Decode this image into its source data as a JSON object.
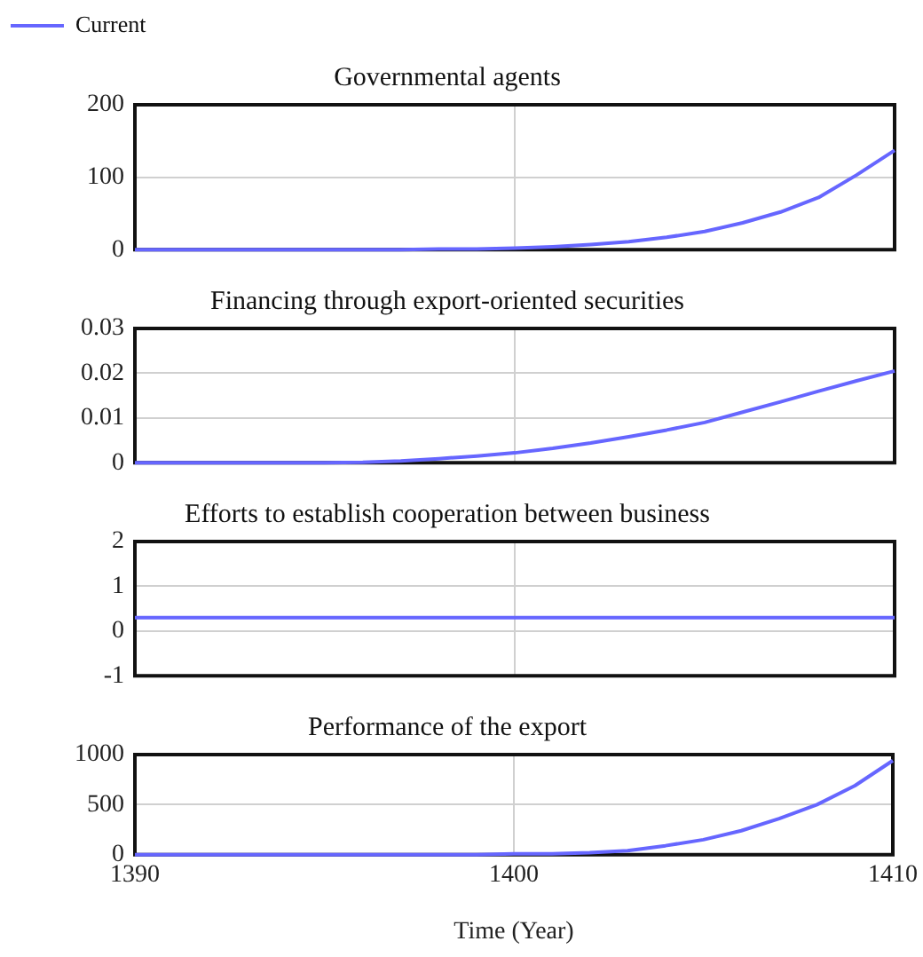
{
  "chart_data": [
    {
      "type": "line",
      "title": "Governmental agents",
      "legend": "top left",
      "marker": "none",
      "grid": true,
      "tick_labels": "y",
      "x": [
        1390,
        1391,
        1392,
        1393,
        1394,
        1395,
        1396,
        1397,
        1398,
        1399,
        1400,
        1401,
        1402,
        1403,
        1404,
        1405,
        1406,
        1407,
        1408,
        1409,
        1410
      ],
      "xlim": [
        1390,
        1410
      ],
      "xticks": [
        1390,
        1400,
        1410
      ],
      "ylim": [
        0,
        200
      ],
      "yticks": [
        0,
        100,
        200
      ],
      "series": [
        {
          "name": "Current",
          "color": "#6666ff",
          "values": [
            0,
            0,
            0,
            0,
            0,
            0,
            0,
            0,
            1,
            1,
            2,
            4,
            7,
            11,
            17,
            25,
            37,
            52,
            72,
            103,
            137
          ]
        }
      ]
    },
    {
      "type": "line",
      "title": "Financing through export-oriented securities",
      "marker": "none",
      "grid": true,
      "tick_labels": "y",
      "x": [
        1390,
        1391,
        1392,
        1393,
        1394,
        1395,
        1396,
        1397,
        1398,
        1399,
        1400,
        1401,
        1402,
        1403,
        1404,
        1405,
        1406,
        1407,
        1408,
        1409,
        1410
      ],
      "xlim": [
        1390,
        1410
      ],
      "xticks": [
        1390,
        1400,
        1410
      ],
      "ylim": [
        0,
        0.03
      ],
      "yticks": [
        0,
        0.01,
        0.02,
        0.03
      ],
      "series": [
        {
          "color": "#6666ff",
          "values": [
            0,
            0,
            0,
            0,
            0,
            0,
            0.0001,
            0.0004,
            0.0009,
            0.0015,
            0.0022,
            0.0032,
            0.0044,
            0.0058,
            0.0073,
            0.009,
            0.0113,
            0.0136,
            0.016,
            0.0183,
            0.0205
          ]
        }
      ]
    },
    {
      "type": "line",
      "title": "Efforts to establish cooperation between business",
      "marker": "none",
      "grid": true,
      "tick_labels": "y",
      "x": [
        1390,
        1410
      ],
      "xlim": [
        1390,
        1410
      ],
      "xticks": [
        1390,
        1400,
        1410
      ],
      "ylim": [
        -1,
        2
      ],
      "yticks": [
        -1,
        0,
        1,
        2
      ],
      "series": [
        {
          "color": "#6666ff",
          "values": [
            0.3,
            0.3
          ]
        }
      ]
    },
    {
      "type": "line",
      "title": "Performance of the export",
      "xlabel": "Time (Year)",
      "marker": "none",
      "grid": true,
      "x": [
        1390,
        1391,
        1392,
        1393,
        1394,
        1395,
        1396,
        1397,
        1398,
        1399,
        1400,
        1401,
        1402,
        1403,
        1404,
        1405,
        1406,
        1407,
        1408,
        1409,
        1410
      ],
      "xlim": [
        1390,
        1410
      ],
      "xticks": [
        1390,
        1400,
        1410
      ],
      "ylim": [
        0,
        1000
      ],
      "yticks": [
        0,
        500,
        1000
      ],
      "series": [
        {
          "color": "#6666ff",
          "values": [
            0,
            0,
            0,
            0,
            0,
            0,
            0,
            0,
            0,
            0,
            10,
            10,
            20,
            40,
            90,
            150,
            240,
            360,
            500,
            690,
            940
          ]
        }
      ]
    }
  ]
}
